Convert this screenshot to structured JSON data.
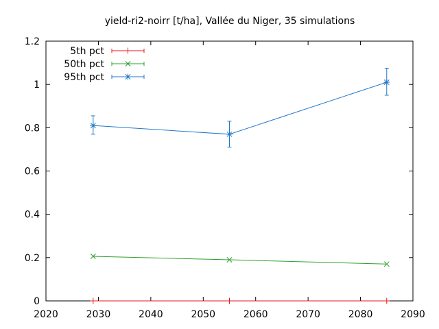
{
  "chart_data": {
    "type": "line",
    "title": "yield-ri2-noirr [t/ha], Vallée du Niger, 35 simulations",
    "xlabel": "",
    "ylabel": "",
    "xlim": [
      2020,
      2090
    ],
    "ylim": [
      0,
      1.2
    ],
    "x_ticks": [
      2020,
      2030,
      2040,
      2050,
      2060,
      2070,
      2080,
      2090
    ],
    "y_ticks": [
      0,
      0.2,
      0.4,
      0.6,
      0.8,
      1,
      1.2
    ],
    "y_tick_labels": [
      "0",
      "0.2",
      "0.4",
      "0.6",
      "0.8",
      "1",
      "1.2"
    ],
    "grid": false,
    "legend_position": "top-left",
    "x": [
      2029,
      2055,
      2085
    ],
    "series": [
      {
        "name": "5th pct",
        "color": "#e41a1c",
        "marker": "plus",
        "values": [
          0.0,
          0.0,
          0.0
        ],
        "err_low": [
          0.0,
          0.0,
          0.0
        ],
        "err_high": [
          0.0,
          0.0,
          0.0
        ]
      },
      {
        "name": "50th pct",
        "color": "#2ca02c",
        "marker": "x",
        "values": [
          0.206,
          0.19,
          0.17
        ],
        "err_low": [
          0.206,
          0.19,
          0.17
        ],
        "err_high": [
          0.206,
          0.19,
          0.17
        ]
      },
      {
        "name": "95th pct",
        "color": "#1f78c8",
        "marker": "star",
        "values": [
          0.81,
          0.77,
          1.01
        ],
        "err_low": [
          0.77,
          0.71,
          0.95
        ],
        "err_high": [
          0.855,
          0.83,
          1.075
        ]
      }
    ]
  }
}
